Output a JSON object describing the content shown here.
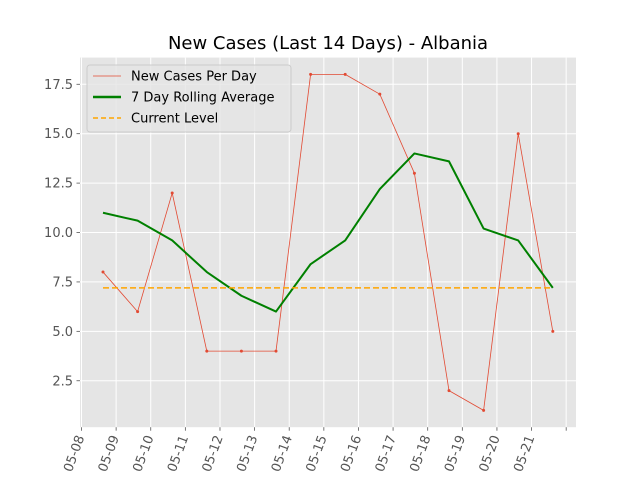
{
  "chart_data": {
    "type": "line",
    "title": "New Cases (Last 14 Days) - Albania",
    "xlabel": "",
    "ylabel": "",
    "x_tick_labels": [
      "05-08",
      "05-09",
      "05-10",
      "05-11",
      "05-12",
      "05-13",
      "05-14",
      "05-15",
      "05-16",
      "05-17",
      "05-18",
      "05-19",
      "05-20",
      "05-21"
    ],
    "y_ticks": [
      2.5,
      5.0,
      7.5,
      10.0,
      12.5,
      15.0,
      17.5
    ],
    "y_tick_labels": [
      "2.5",
      "5.0",
      "7.5",
      "10.0",
      "12.5",
      "15.0",
      "17.5"
    ],
    "ylim": [
      0.15,
      18.85
    ],
    "grid": true,
    "legend_position": "top-left",
    "series": [
      {
        "name": "New Cases Per Day",
        "color": "#E24A33",
        "style": "thin-line-with-markers",
        "values": [
          8,
          6,
          12,
          4,
          4,
          4,
          18,
          18,
          17,
          13,
          2,
          1,
          15,
          5
        ]
      },
      {
        "name": "7 Day Rolling Average",
        "color": "#008000",
        "style": "thick-line",
        "values": [
          11.0,
          10.6,
          9.6,
          8.0,
          6.8,
          6.0,
          8.4,
          9.6,
          12.2,
          14.0,
          13.6,
          10.2,
          9.6,
          7.2
        ]
      },
      {
        "name": "Current Level",
        "color": "#FFA500",
        "style": "dashed-line",
        "values": [
          7.2,
          7.2,
          7.2,
          7.2,
          7.2,
          7.2,
          7.2,
          7.2,
          7.2,
          7.2,
          7.2,
          7.2,
          7.2,
          7.2
        ]
      }
    ]
  }
}
